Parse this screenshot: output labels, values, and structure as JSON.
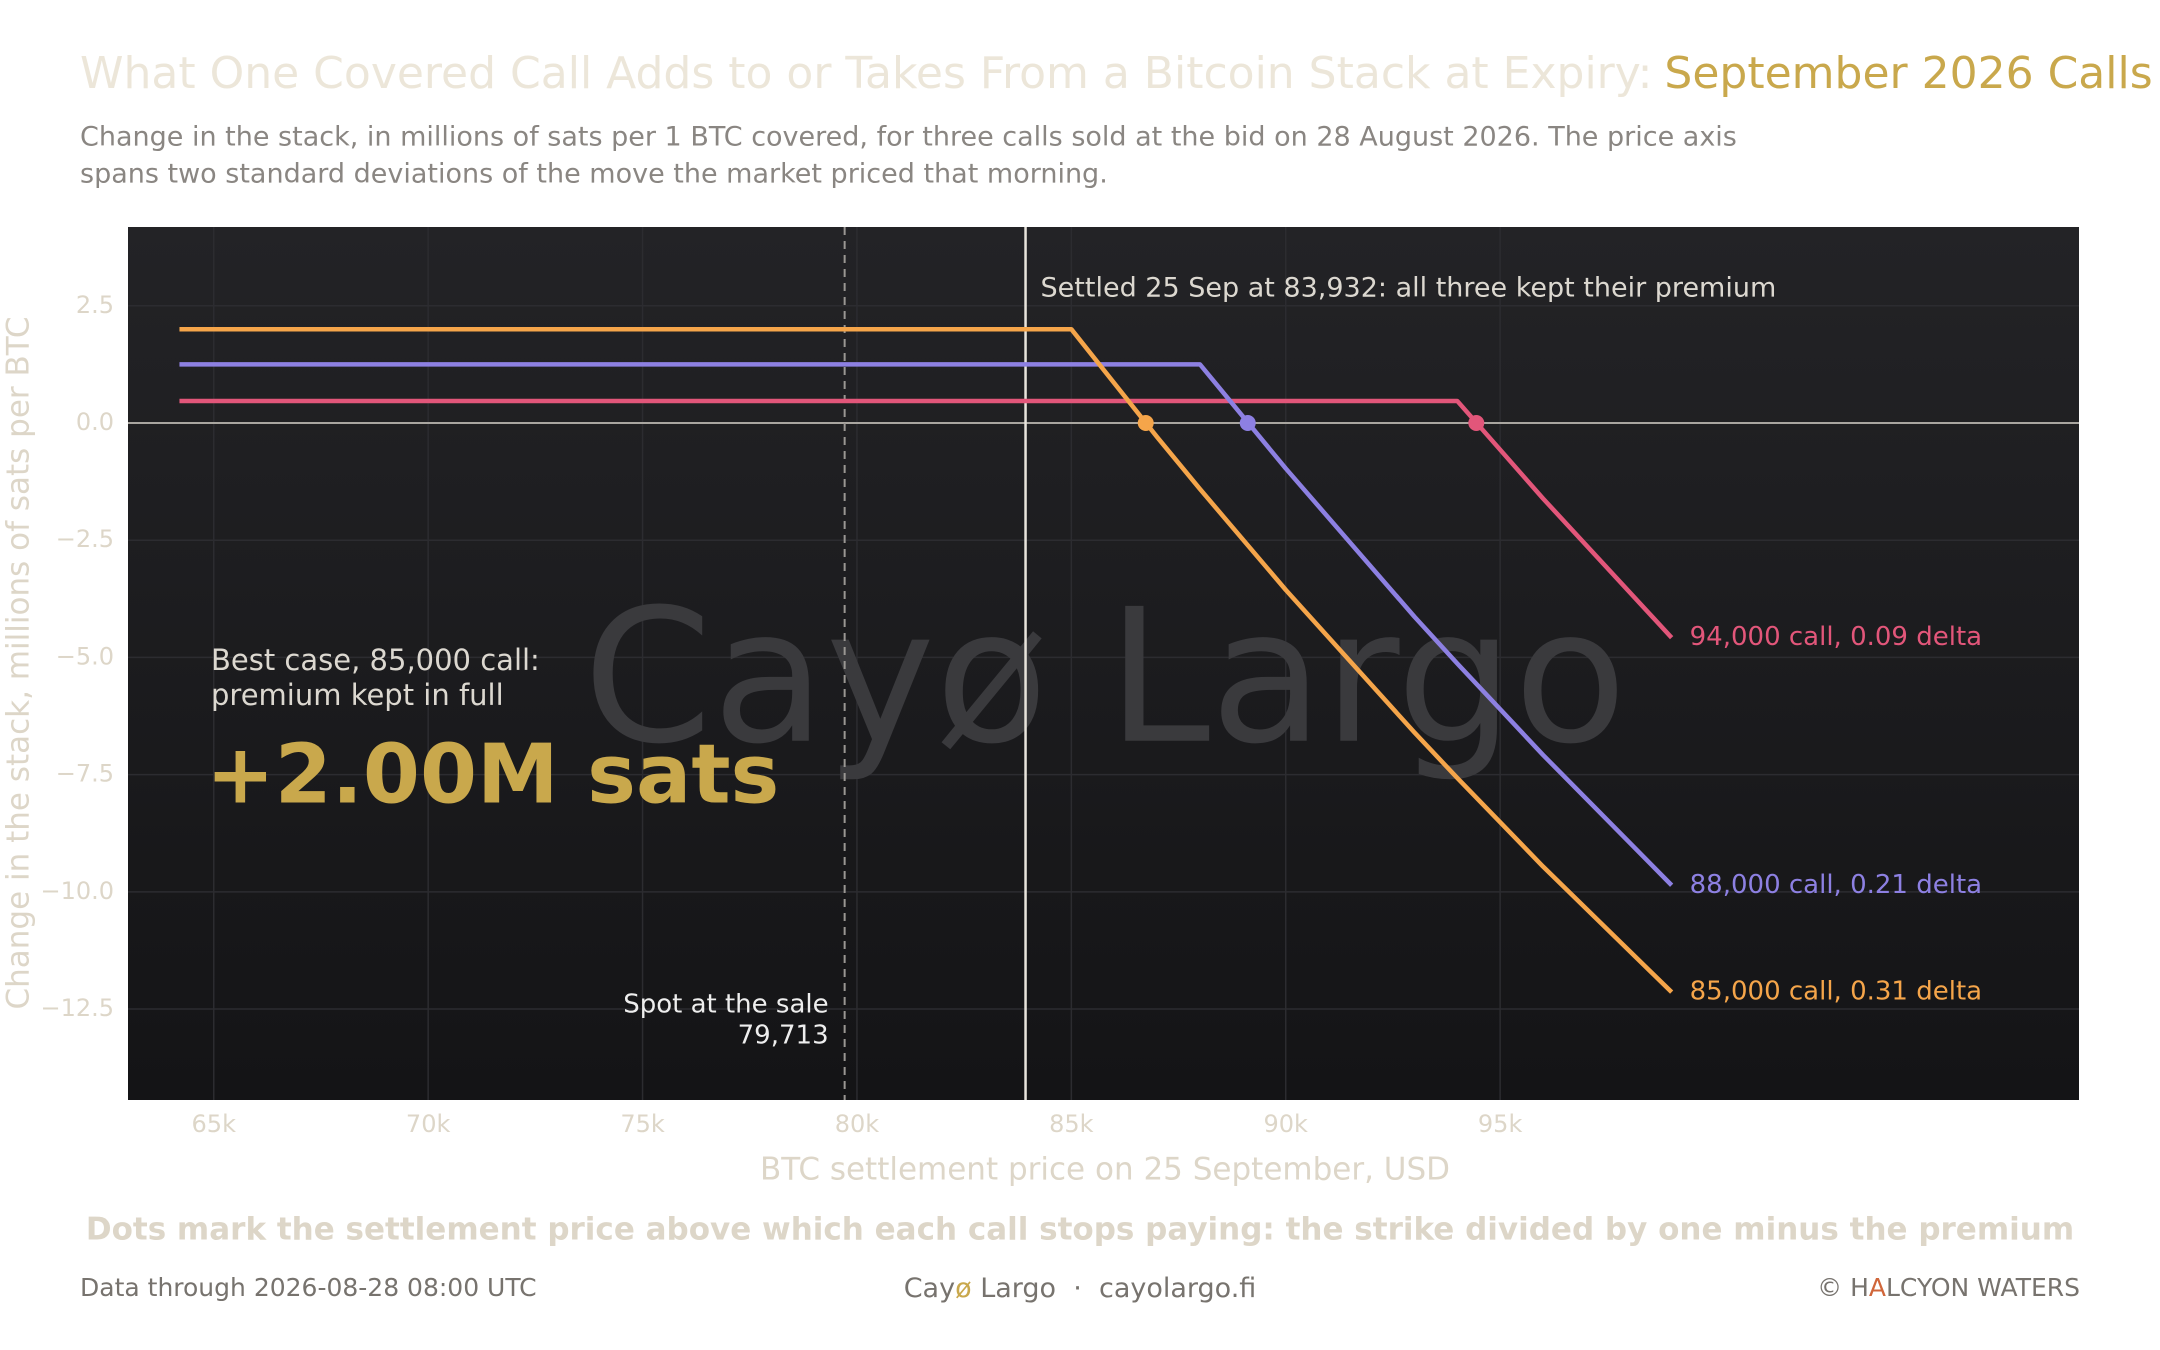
{
  "chart_data": {
    "type": "line",
    "title": "What One Covered Call Adds to or Takes From a Bitcoin Stack at Expiry:",
    "title_highlight": "September 2026 Calls",
    "subtitle": [
      "Change in the stack, in millions of sats per 1 BTC covered, for three calls sold at the bid on 28 August 2026. The price axis",
      "spans two standard deviations of the move the market priced that morning."
    ],
    "x_label": "BTC settlement price on 25 September, USD",
    "y_label": "Change in the stack, millions of sats per BTC",
    "x": [
      64200,
      85000,
      87000,
      88000,
      90000,
      93000,
      94000,
      96000,
      99000
    ],
    "series": [
      {
        "name": "94,000 call, 0.09 delta",
        "color": "#e2567a",
        "values": [
          0.47,
          0.47,
          0.47,
          0.47,
          0.47,
          0.47,
          0.47,
          -1.61,
          -4.58
        ],
        "breakeven": 94444
      },
      {
        "name": "88,000 call, 0.21 delta",
        "color": "#8d80e2",
        "values": [
          1.25,
          1.25,
          1.25,
          1.25,
          -0.97,
          -4.13,
          -5.13,
          -7.08,
          -9.86
        ],
        "breakeven": 89114
      },
      {
        "name": "85,000 call, 0.31 delta",
        "color": "#f5a54a",
        "values": [
          2.0,
          2.0,
          -0.3,
          -1.41,
          -3.56,
          -6.6,
          -7.57,
          -9.46,
          -12.14
        ],
        "breakeven": 86735
      }
    ],
    "hline": 0,
    "xlim": [
      63000,
      108500
    ],
    "ylim": [
      -14.44,
      4.18
    ],
    "xticks": [
      {
        "value": 65000,
        "label": "65k"
      },
      {
        "value": 70000,
        "label": "70k"
      },
      {
        "value": 75000,
        "label": "75k"
      },
      {
        "value": 80000,
        "label": "80k"
      },
      {
        "value": 85000,
        "label": "85k"
      },
      {
        "value": 90000,
        "label": "90k"
      },
      {
        "value": 95000,
        "label": "95k"
      }
    ],
    "yticks": [
      2.5,
      {
        "value": 0,
        "label": "0.0"
      },
      {
        "value": -2.5,
        "label": "−2.5"
      },
      {
        "value": -5,
        "label": "−5.0"
      },
      {
        "value": -7.5,
        "label": "−7.5"
      },
      {
        "value": -10,
        "label": "−10.0"
      },
      {
        "value": -12.5,
        "label": "−12.5"
      }
    ],
    "grid": true,
    "settled": {
      "value": 83932,
      "label": "Settled 25 Sep at 83,932: all three kept their premium"
    },
    "spot": {
      "value": 79713,
      "label": "Spot at the sale",
      "value_label": "79,713"
    },
    "best_case": {
      "lines": [
        "Best case, 85,000 call:",
        "premium kept in full"
      ],
      "value_label": "+2.00M sats"
    },
    "watermark": "Cayø Largo",
    "footnote": "Dots mark the settlement price above which each call stops paying: the strike divided by one minus the premium"
  },
  "footer": {
    "left": "Data through 2026-08-28 08:00 UTC",
    "center": [
      "Cay",
      "ø",
      " Largo  ·  cayolargo.fi"
    ],
    "right": [
      "© H",
      "A",
      "LCYON WATERS"
    ]
  }
}
